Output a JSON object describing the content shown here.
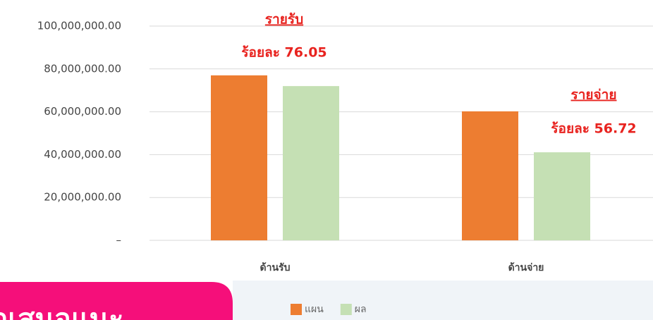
{
  "chart_data": {
    "type": "bar",
    "categories": [
      "ด้านรับ",
      "ด้านจ่าย"
    ],
    "series": [
      {
        "name": "แผน",
        "color": "#ed7d31",
        "values": [
          77000000,
          60200000
        ]
      },
      {
        "name": "ผล",
        "color": "#c5e0b4",
        "values": [
          72000000,
          41100000
        ]
      }
    ],
    "ylim": [
      0,
      100000000
    ],
    "yticks": [
      {
        "value": 0,
        "label": "–"
      },
      {
        "value": 20000000,
        "label": "20,000,000.00"
      },
      {
        "value": 40000000,
        "label": "40,000,000.00"
      },
      {
        "value": 60000000,
        "label": "60,000,000.00"
      },
      {
        "value": 80000000,
        "label": "80,000,000.00"
      },
      {
        "value": 100000000,
        "label": "100,000,000.00"
      }
    ],
    "grid": true,
    "legend": "bottom",
    "annotations": [
      {
        "title": "รายรับ",
        "text": "ร้อยละ 76.05"
      },
      {
        "title": "รายจ่าย",
        "text": "ร้อยละ 56.72"
      }
    ]
  },
  "banner": {
    "text": "ข้อเสนอแนะ"
  }
}
